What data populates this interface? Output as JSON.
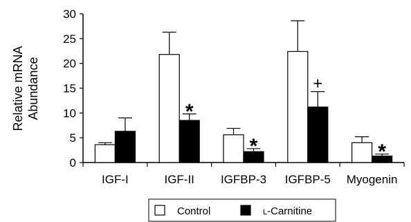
{
  "chart_data": {
    "type": "bar",
    "ylabel": "Relative mRNA Abundance",
    "ylabel_lines": [
      "Relative mRNA",
      "Abundance"
    ],
    "ylim": [
      0,
      30
    ],
    "yticks": [
      "0",
      "5",
      "10",
      "15",
      "20",
      "25",
      "30"
    ],
    "categories": [
      "IGF-I",
      "IGF-II",
      "IGFBP-3",
      "IGFBP-5",
      "Myogenin"
    ],
    "series": [
      {
        "name": "Control",
        "color": "#ffffff",
        "values": [
          3.6,
          21.8,
          5.6,
          22.4,
          4.0
        ],
        "errors": [
          0.4,
          4.5,
          1.3,
          6.2,
          1.2
        ]
      },
      {
        "name": "L-Carnitine",
        "color": "#000000",
        "values": [
          6.3,
          8.5,
          2.2,
          11.2,
          1.3
        ],
        "errors": [
          2.7,
          1.3,
          0.6,
          3.1,
          0.4
        ]
      }
    ],
    "annotations": [
      {
        "category": "IGF-II",
        "series": "L-Carnitine",
        "text": "*"
      },
      {
        "category": "IGFBP-3",
        "series": "L-Carnitine",
        "text": "*"
      },
      {
        "category": "IGFBP-5",
        "series": "L-Carnitine",
        "text": "+"
      },
      {
        "category": "Myogenin",
        "series": "L-Carnitine",
        "text": "*"
      }
    ],
    "legend": {
      "position": "bottom",
      "items": [
        {
          "label": "Control",
          "fill": "#ffffff"
        },
        {
          "label_prefix": "L",
          "label_rest": "-Carnitine",
          "fill": "#000000"
        }
      ]
    },
    "grid": false
  }
}
